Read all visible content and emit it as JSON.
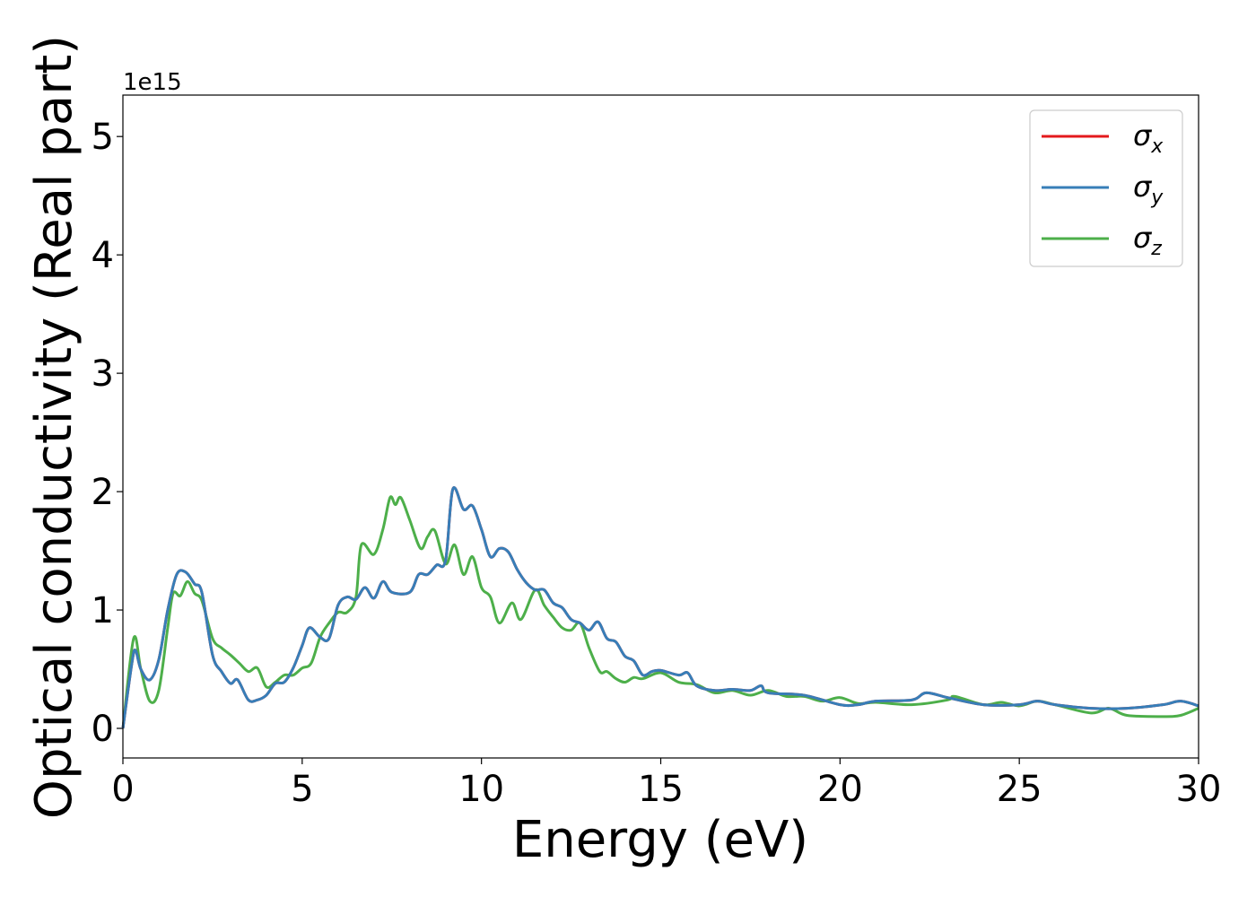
{
  "chart_data": {
    "type": "line",
    "xlabel": "Energy (eV)",
    "ylabel": "Optical conductivity (Real part)",
    "y_offset_label": "1e15",
    "xlim": [
      0,
      30
    ],
    "ylim": [
      -0.25,
      5.35
    ],
    "y_scale": 1000000000000000.0,
    "xticks": [
      0,
      5,
      10,
      15,
      20,
      25,
      30
    ],
    "xtick_labels": [
      "0",
      "5",
      "10",
      "15",
      "20",
      "25",
      "30"
    ],
    "yticks": [
      0,
      1,
      2,
      3,
      4,
      5
    ],
    "ytick_labels": [
      "0",
      "1",
      "2",
      "3",
      "4",
      "5"
    ],
    "grid": false,
    "legend_position": "top-right",
    "series": [
      {
        "name": "σ",
        "sub": "x",
        "color": "#e41a1c",
        "ref": "blue_curve"
      },
      {
        "name": "σ",
        "sub": "y",
        "color": "#377eb8",
        "ref": "blue_curve"
      },
      {
        "name": "σ",
        "sub": "z",
        "color": "#4daf4a",
        "ref": "green_curve"
      }
    ],
    "blue_curve": {
      "x": [
        0,
        0.25,
        0.35,
        0.5,
        0.75,
        1.0,
        1.25,
        1.5,
        1.75,
        2.0,
        2.2,
        2.5,
        2.75,
        3.0,
        3.2,
        3.5,
        3.75,
        4.0,
        4.25,
        4.5,
        4.75,
        5.0,
        5.2,
        5.5,
        5.75,
        6.0,
        6.25,
        6.5,
        6.75,
        7.0,
        7.25,
        7.5,
        8.0,
        8.25,
        8.5,
        8.75,
        9.0,
        9.2,
        9.5,
        9.75,
        10.0,
        10.25,
        10.5,
        10.75,
        11.0,
        11.25,
        11.5,
        11.75,
        12.0,
        12.25,
        12.5,
        12.75,
        13.0,
        13.25,
        13.5,
        13.75,
        14.0,
        14.25,
        14.5,
        14.75,
        15.0,
        15.5,
        15.75,
        16.0,
        16.5,
        17.0,
        17.5,
        17.8,
        18.0,
        19.0,
        20.0,
        20.5,
        21.0,
        22.0,
        22.4,
        23.0,
        24.0,
        25.0,
        25.5,
        26.0,
        27.0,
        28.0,
        29.0,
        29.5,
        30.0
      ],
      "y": [
        0,
        0.55,
        0.66,
        0.5,
        0.41,
        0.58,
        1.0,
        1.3,
        1.32,
        1.22,
        1.15,
        0.62,
        0.48,
        0.38,
        0.41,
        0.24,
        0.24,
        0.28,
        0.38,
        0.39,
        0.51,
        0.7,
        0.85,
        0.77,
        0.76,
        1.04,
        1.11,
        1.09,
        1.19,
        1.1,
        1.24,
        1.15,
        1.15,
        1.3,
        1.3,
        1.38,
        1.42,
        2.02,
        1.85,
        1.88,
        1.68,
        1.45,
        1.52,
        1.49,
        1.34,
        1.23,
        1.17,
        1.17,
        1.06,
        1.02,
        0.92,
        0.89,
        0.83,
        0.9,
        0.76,
        0.73,
        0.61,
        0.57,
        0.45,
        0.48,
        0.49,
        0.45,
        0.47,
        0.36,
        0.32,
        0.33,
        0.32,
        0.36,
        0.3,
        0.28,
        0.2,
        0.2,
        0.23,
        0.24,
        0.3,
        0.26,
        0.2,
        0.2,
        0.23,
        0.2,
        0.17,
        0.17,
        0.2,
        0.23,
        0.19
      ]
    },
    "green_curve": {
      "x": [
        0,
        0.3,
        0.5,
        0.75,
        1.0,
        1.25,
        1.4,
        1.6,
        1.8,
        2.0,
        2.2,
        2.5,
        2.75,
        3.0,
        3.25,
        3.5,
        3.75,
        4.0,
        4.25,
        4.5,
        4.75,
        5.0,
        5.25,
        5.5,
        5.75,
        6.0,
        6.25,
        6.5,
        6.65,
        7.0,
        7.25,
        7.45,
        7.6,
        7.75,
        8.0,
        8.3,
        8.5,
        8.7,
        9.0,
        9.25,
        9.5,
        9.75,
        10.0,
        10.25,
        10.5,
        10.85,
        11.1,
        11.5,
        11.75,
        12.0,
        12.25,
        12.5,
        12.75,
        13.0,
        13.3,
        13.5,
        13.75,
        14.0,
        14.25,
        14.5,
        15.0,
        15.5,
        16.0,
        16.5,
        17.0,
        17.5,
        18.0,
        18.5,
        19.0,
        19.5,
        20.0,
        20.5,
        21.0,
        22.0,
        23.0,
        23.2,
        24.0,
        24.5,
        25.0,
        25.5,
        26.0,
        27.0,
        27.5,
        28.0,
        29.0,
        29.5,
        30.0
      ],
      "y": [
        0,
        0.76,
        0.5,
        0.23,
        0.32,
        0.85,
        1.14,
        1.12,
        1.24,
        1.14,
        1.08,
        0.76,
        0.68,
        0.62,
        0.55,
        0.48,
        0.51,
        0.35,
        0.39,
        0.45,
        0.45,
        0.51,
        0.55,
        0.77,
        0.89,
        0.98,
        0.98,
        1.11,
        1.55,
        1.47,
        1.68,
        1.95,
        1.89,
        1.95,
        1.76,
        1.52,
        1.62,
        1.67,
        1.39,
        1.55,
        1.3,
        1.45,
        1.19,
        1.11,
        0.89,
        1.06,
        0.92,
        1.17,
        1.04,
        0.94,
        0.85,
        0.83,
        0.89,
        0.68,
        0.48,
        0.48,
        0.42,
        0.39,
        0.43,
        0.42,
        0.47,
        0.39,
        0.37,
        0.3,
        0.32,
        0.28,
        0.32,
        0.27,
        0.27,
        0.23,
        0.26,
        0.21,
        0.22,
        0.2,
        0.24,
        0.27,
        0.2,
        0.22,
        0.19,
        0.23,
        0.2,
        0.13,
        0.17,
        0.11,
        0.1,
        0.11,
        0.17
      ]
    }
  }
}
